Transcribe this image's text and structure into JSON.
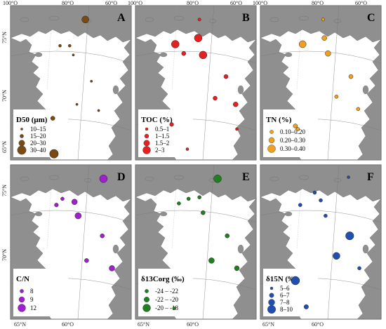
{
  "ticks": {
    "top": [
      "100°O",
      "80°O",
      "60°O",
      "100°O",
      "80°O",
      "60°O",
      "100°O",
      "80°O",
      "60°O"
    ],
    "bottom": [
      "65°N",
      "60°O",
      "65°N",
      "60°O",
      "65°N",
      "60°O"
    ],
    "left": [
      "75°N",
      "70°N",
      "65°N",
      "75°N",
      "70°N"
    ]
  },
  "colors": {
    "ocean": "#ffffff",
    "land": "#8f8f8f",
    "landDark": "#5c5c5c",
    "legendBox": "#ffffff",
    "dLegend": "#8b4513"
  },
  "panels": [
    {
      "id": "A",
      "letter": "A",
      "title": "D50 (μm)",
      "color": "#7a4a12",
      "legend": [
        {
          "label": "10–15",
          "r": 1.6
        },
        {
          "label": "15–20",
          "r": 2.6
        },
        {
          "label": "20–30",
          "r": 4.2
        },
        {
          "label": "30–40",
          "r": 6.2
        }
      ],
      "points": [
        [
          0.62,
          0.09,
          5
        ],
        [
          0.41,
          0.26,
          2
        ],
        [
          0.49,
          0.26,
          2
        ],
        [
          0.52,
          0.32,
          1.6
        ],
        [
          0.67,
          0.49,
          1.6
        ],
        [
          0.55,
          0.64,
          1.6
        ],
        [
          0.73,
          0.68,
          1.6
        ],
        [
          0.35,
          0.73,
          3
        ],
        [
          0.36,
          0.96,
          6.2
        ]
      ]
    },
    {
      "id": "B",
      "letter": "B",
      "title": "TOC (%)",
      "color": "#e62020",
      "legend": [
        {
          "label": "0.5–1",
          "r": 2
        },
        {
          "label": "1–1.5",
          "r": 3
        },
        {
          "label": "1.5–2",
          "r": 4.2
        },
        {
          "label": "2–3",
          "r": 5.5
        }
      ],
      "points": [
        [
          0.53,
          0.09,
          2.2
        ],
        [
          0.33,
          0.25,
          5.5
        ],
        [
          0.52,
          0.21,
          5.5
        ],
        [
          0.56,
          0.32,
          5.5
        ],
        [
          0.4,
          0.31,
          3
        ],
        [
          0.75,
          0.46,
          3
        ],
        [
          0.66,
          0.6,
          3
        ],
        [
          0.83,
          0.64,
          3.5
        ],
        [
          0.3,
          0.77,
          2.8
        ],
        [
          0.84,
          0.8,
          2
        ],
        [
          0.43,
          0.93,
          2
        ]
      ]
    },
    {
      "id": "C",
      "letter": "C",
      "title": "TN (%)",
      "color": "#f0a020",
      "legend": [
        {
          "label": "0.10–0.20",
          "r": 2.6
        },
        {
          "label": "0.20–0.30",
          "r": 4
        },
        {
          "label": "0.30–0.40",
          "r": 5.5
        }
      ],
      "points": [
        [
          0.52,
          0.09,
          2.2
        ],
        [
          0.35,
          0.25,
          5
        ],
        [
          0.53,
          0.21,
          3.5
        ],
        [
          0.56,
          0.31,
          4
        ],
        [
          0.75,
          0.46,
          3
        ],
        [
          0.63,
          0.59,
          2.5
        ],
        [
          0.81,
          0.67,
          2.5
        ],
        [
          0.29,
          0.78,
          3
        ],
        [
          0.31,
          0.8,
          2.5
        ]
      ]
    },
    {
      "id": "D",
      "letter": "D",
      "title": "C/N",
      "color": "#a020d0",
      "legend": [
        {
          "label": "8",
          "r": 2.6
        },
        {
          "label": "9",
          "r": 4
        },
        {
          "label": "12",
          "r": 5.5
        }
      ],
      "points": [
        [
          0.77,
          0.09,
          5.5
        ],
        [
          0.38,
          0.26,
          2.8
        ],
        [
          0.53,
          0.24,
          4
        ],
        [
          0.56,
          0.33,
          4.5
        ],
        [
          0.43,
          0.22,
          2.5
        ],
        [
          0.76,
          0.46,
          3
        ],
        [
          0.63,
          0.62,
          3
        ],
        [
          0.84,
          0.67,
          4
        ]
      ]
    },
    {
      "id": "E",
      "letter": "E",
      "title": "δ13Corg (‰)",
      "color": "#208020",
      "legend": [
        {
          "label": "-24 – -22",
          "r": 2.6
        },
        {
          "label": "-22 – -20",
          "r": 3.8
        },
        {
          "label": "-20 – -18",
          "r": 5.5
        }
      ],
      "points": [
        [
          0.68,
          0.09,
          5.5
        ],
        [
          0.36,
          0.25,
          2.5
        ],
        [
          0.53,
          0.21,
          2.5
        ],
        [
          0.56,
          0.31,
          3
        ],
        [
          0.44,
          0.22,
          2.5
        ],
        [
          0.76,
          0.46,
          3
        ],
        [
          0.63,
          0.62,
          4
        ],
        [
          0.84,
          0.67,
          3.5
        ],
        [
          0.32,
          0.93,
          2.2
        ]
      ]
    },
    {
      "id": "F",
      "letter": "F",
      "title": "δ15N (‰)",
      "color": "#1f4fb0",
      "legend": [
        {
          "label": "5–6",
          "r": 2
        },
        {
          "label": "6–7",
          "r": 3.2
        },
        {
          "label": "7–8",
          "r": 4.5
        },
        {
          "label": "8–10",
          "r": 5.8
        }
      ],
      "points": [
        [
          0.73,
          0.08,
          2
        ],
        [
          0.33,
          0.26,
          2.5
        ],
        [
          0.5,
          0.23,
          2.5
        ],
        [
          0.54,
          0.33,
          2.5
        ],
        [
          0.45,
          0.18,
          2.5
        ],
        [
          0.74,
          0.46,
          5.8
        ],
        [
          0.63,
          0.59,
          5
        ],
        [
          0.82,
          0.67,
          2.5
        ],
        [
          0.29,
          0.75,
          6
        ],
        [
          0.38,
          0.92,
          3.2
        ]
      ]
    }
  ]
}
